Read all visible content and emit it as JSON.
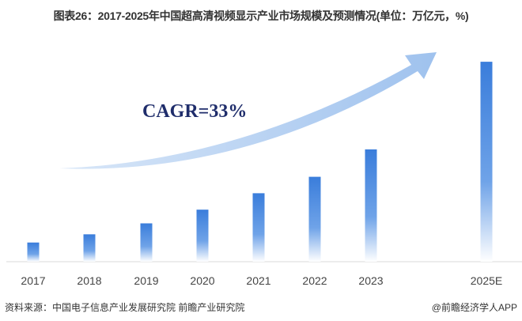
{
  "title": "图表26：2017-2025年中国超高清视频显示产业市场规模及预测情况(单位：万亿元，%)",
  "footer": {
    "source": "资料来源：中国电子信息产业发展研究院 前瞻产业研究院",
    "credit": "@前瞻经济学人APP"
  },
  "colors": {
    "bar_top": "#3a7ddb",
    "bar_bottom": "#ffffff",
    "arrow": "#a9c9f0",
    "cagr_text": "#1f2d6b"
  },
  "chart_data": {
    "type": "bar",
    "title": "图表26：2017-2025年中国超高清视频显示产业市场规模及预测情况(单位：万亿元，%)",
    "categories": [
      "2017",
      "2018",
      "2019",
      "2020",
      "2021",
      "2022",
      "2023",
      "2025E"
    ],
    "values": [
      0.7,
      1.0,
      1.4,
      1.9,
      2.5,
      3.1,
      4.1,
      7.3
    ],
    "ylim": [
      0,
      8.4
    ],
    "xlabel": "",
    "ylabel": "",
    "grid": false,
    "y_axis_visible": false,
    "annotations": [
      {
        "text": "CAGR=33%",
        "type": "growth-arrow"
      }
    ]
  }
}
